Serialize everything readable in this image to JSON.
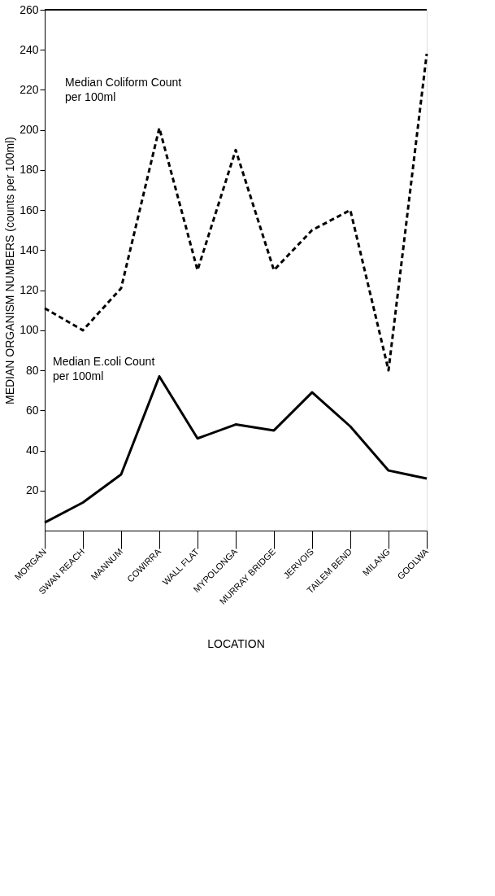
{
  "chart_data": {
    "type": "line",
    "xlabel": "LOCATION",
    "ylabel": "MEDIAN ORGANISM NUMBERS (counts per 100ml)",
    "categories": [
      "MORGAN",
      "SWAN REACH",
      "MANNUM",
      "COWIRRA",
      "WALL FLAT",
      "MYPOLONGA",
      "MURRAY BRIDGE",
      "JERVOIS",
      "TAILEM BEND",
      "MILANG",
      "GOOLWA"
    ],
    "ylim": [
      0,
      260
    ],
    "yticks": [
      20,
      40,
      60,
      80,
      100,
      120,
      140,
      160,
      180,
      200,
      220,
      240,
      260
    ],
    "series": [
      {
        "name": "Median Coliform Count per 100ml",
        "color": "#000000",
        "line_style": "dashed",
        "values": [
          111,
          100,
          121,
          201,
          130,
          190,
          130,
          150,
          160,
          80,
          238
        ]
      },
      {
        "name": "Median E.coli Count per 100ml",
        "color": "#000000",
        "line_style": "solid",
        "values": [
          4,
          14,
          28,
          77,
          46,
          53,
          50,
          69,
          52,
          30,
          26
        ]
      }
    ],
    "grid": false,
    "marker": "none"
  }
}
